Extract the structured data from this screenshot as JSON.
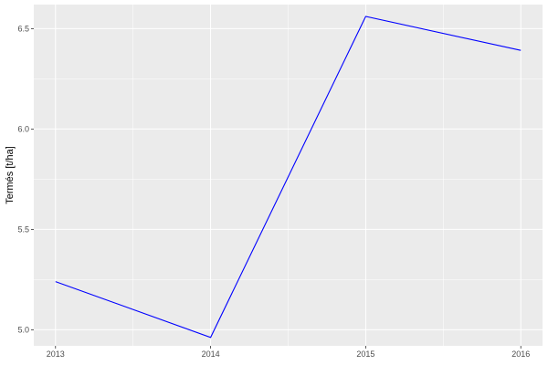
{
  "chart_data": {
    "type": "line",
    "title": "",
    "xlabel": "",
    "ylabel": "Termés [t/ha]",
    "x": [
      2013,
      2014,
      2015,
      2016
    ],
    "series": [
      {
        "values": [
          5.24,
          4.962,
          6.561,
          6.392
        ],
        "color": "#0000ff"
      }
    ],
    "xticks": [
      "2013",
      "2014",
      "2015",
      "2016"
    ],
    "yticks": [
      "5.0",
      "5.5",
      "6.0",
      "6.5"
    ],
    "ylim": [
      4.92,
      6.62
    ],
    "xlim": [
      2012.86,
      2016.14
    ],
    "grid": true,
    "panel_background": "#ebebeb",
    "grid_color": "#ffffff"
  }
}
